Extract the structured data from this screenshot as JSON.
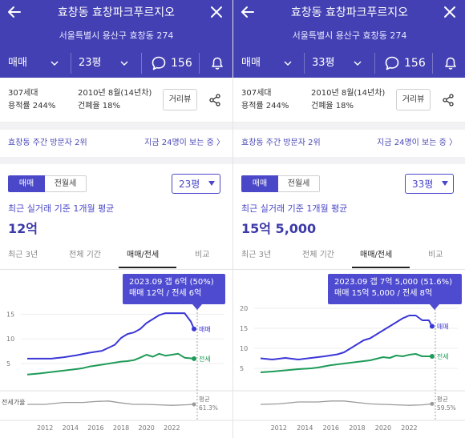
{
  "panels": [
    {
      "header": {
        "title": "효창동 효창파크푸르지오",
        "address": "서울특별시 용산구 효창동 274",
        "trade_type": "매매",
        "area": "23평",
        "comment_count": "156"
      },
      "info": {
        "units": "307세대",
        "floor_area_ratio": "용적률 244%",
        "built_year": "2010년 8월(14년차)",
        "building_coverage": "건폐율 18%",
        "distance_button": "거리뷰"
      },
      "visitors": {
        "text": "효창동 주간 방문자 2위",
        "link": "지금 24명이 보는 중 〉"
      },
      "price": {
        "tab_sale": "매매",
        "tab_rent": "전월세",
        "area_select": "23평",
        "avg_label": "최근 실거래 기준 1개월 평균",
        "avg_value": "12억"
      },
      "period_tabs": [
        "최근 3년",
        "전체 기간",
        "매매/전세",
        "비교"
      ],
      "tooltip": {
        "line1": "2023.09  갭 6억 (50%)",
        "line2": "매매 12억 / 전세 6억"
      },
      "chart_data": {
        "type": "line",
        "x_ticks": [
          "2012",
          "2014",
          "2016",
          "2018",
          "2020",
          "2022"
        ],
        "xlim": [
          2010.6,
          2024.0
        ],
        "y_ticks": [
          "15억",
          "10억",
          "5억"
        ],
        "ylim": [
          0,
          17
        ],
        "series": [
          {
            "name": "매매",
            "color": "#3b37d6",
            "points": [
              [
                2010.6,
                6
              ],
              [
                2011.5,
                6
              ],
              [
                2012.5,
                6
              ],
              [
                2013.5,
                6.3
              ],
              [
                2014.5,
                6.7
              ],
              [
                2015.5,
                7.2
              ],
              [
                2016.5,
                7.6
              ],
              [
                2017.0,
                8.2
              ],
              [
                2017.5,
                8.8
              ],
              [
                2018.0,
                10.2
              ],
              [
                2018.5,
                11
              ],
              [
                2019.0,
                11.3
              ],
              [
                2019.5,
                12
              ],
              [
                2020.0,
                13.2
              ],
              [
                2020.5,
                14
              ],
              [
                2021.0,
                14.8
              ],
              [
                2021.5,
                15.2
              ],
              [
                2022.0,
                15.2
              ],
              [
                2022.5,
                15.2
              ],
              [
                2023.0,
                15.2
              ],
              [
                2023.5,
                13.5
              ],
              [
                2023.75,
                12
              ]
            ]
          },
          {
            "name": "전세",
            "color": "#1e9b58",
            "points": [
              [
                2010.6,
                2.8
              ],
              [
                2011.5,
                3.0
              ],
              [
                2012.5,
                3.3
              ],
              [
                2013.5,
                3.6
              ],
              [
                2014.5,
                3.9
              ],
              [
                2015.0,
                4.1
              ],
              [
                2015.5,
                4.4
              ],
              [
                2016.0,
                4.6
              ],
              [
                2016.5,
                4.8
              ],
              [
                2017.0,
                5.0
              ],
              [
                2017.5,
                5.2
              ],
              [
                2018.0,
                5.4
              ],
              [
                2018.5,
                5.5
              ],
              [
                2019.0,
                5.7
              ],
              [
                2019.5,
                6.2
              ],
              [
                2020.0,
                6.8
              ],
              [
                2020.5,
                6.4
              ],
              [
                2021.0,
                7.0
              ],
              [
                2021.5,
                6.6
              ],
              [
                2022.0,
                6.8
              ],
              [
                2022.5,
                7.0
              ],
              [
                2023.0,
                6.2
              ],
              [
                2023.75,
                6
              ]
            ]
          }
        ],
        "sub_label": "전세가율",
        "sub_series": {
          "name": "평균",
          "color": "#9a9a9a",
          "points": [
            [
              2010.6,
              0.5
            ],
            [
              2012,
              0.5
            ],
            [
              2013.5,
              0.58
            ],
            [
              2015,
              0.58
            ],
            [
              2016,
              0.62
            ],
            [
              2017,
              0.64
            ],
            [
              2018,
              0.56
            ],
            [
              2019,
              0.5
            ],
            [
              2020,
              0.5
            ],
            [
              2021,
              0.48
            ],
            [
              2022,
              0.46
            ],
            [
              2023,
              0.48
            ],
            [
              2023.75,
              0.5
            ]
          ]
        },
        "avg_label": "평균",
        "avg_value": "61.3%",
        "series_labels": [
          "매매",
          "전세"
        ]
      }
    },
    {
      "header": {
        "title": "효창동 효창파크푸르지오",
        "address": "서울특별시 용산구 효창동 274",
        "trade_type": "매매",
        "area": "33평",
        "comment_count": "156"
      },
      "info": {
        "units": "307세대",
        "floor_area_ratio": "용적률 244%",
        "built_year": "2010년 8월(14년차)",
        "building_coverage": "건폐율 18%",
        "distance_button": "거리뷰"
      },
      "visitors": {
        "text": "효창동 주간 방문자 2위",
        "link": "지금 24명이 보는 중 〉"
      },
      "price": {
        "tab_sale": "매매",
        "tab_rent": "전월세",
        "area_select": "33평",
        "avg_label": "최근 실거래 기준 1개월 평균",
        "avg_value": "15억 5,000"
      },
      "period_tabs": [
        "최근 3년",
        "전체 기간",
        "매매/전세",
        "비교"
      ],
      "tooltip": {
        "line1": "2023.09  갭 7억 5,000 (51.6%)",
        "line2": "매매 15억 5,000 / 전세 8억"
      },
      "chart_data": {
        "type": "line",
        "x_ticks": [
          "2012",
          "2014",
          "2016",
          "2018",
          "2020",
          "2022"
        ],
        "xlim": [
          2010.6,
          2024.0
        ],
        "y_ticks": [
          "20억",
          "15억",
          "10억",
          "5억"
        ],
        "ylim": [
          0,
          21
        ],
        "series": [
          {
            "name": "매매",
            "color": "#3b37d6",
            "points": [
              [
                2010.6,
                7.5
              ],
              [
                2011.5,
                7.2
              ],
              [
                2012.5,
                7.6
              ],
              [
                2013.5,
                7.2
              ],
              [
                2014.5,
                7.6
              ],
              [
                2015.5,
                8.0
              ],
              [
                2016.5,
                8.5
              ],
              [
                2017.0,
                9.0
              ],
              [
                2017.5,
                10.0
              ],
              [
                2018.0,
                11.0
              ],
              [
                2018.5,
                12.0
              ],
              [
                2019.0,
                12.5
              ],
              [
                2019.5,
                13.5
              ],
              [
                2020.0,
                14.5
              ],
              [
                2020.5,
                15.5
              ],
              [
                2021.0,
                16.5
              ],
              [
                2021.5,
                17.5
              ],
              [
                2022.0,
                18.2
              ],
              [
                2022.5,
                18.2
              ],
              [
                2023.0,
                17.0
              ],
              [
                2023.5,
                17.0
              ],
              [
                2023.75,
                15.5
              ]
            ]
          },
          {
            "name": "전세",
            "color": "#1e9b58",
            "points": [
              [
                2010.6,
                4.0
              ],
              [
                2011.5,
                4.2
              ],
              [
                2012.5,
                4.5
              ],
              [
                2013.5,
                4.8
              ],
              [
                2014.5,
                5.0
              ],
              [
                2015.0,
                5.2
              ],
              [
                2015.5,
                5.5
              ],
              [
                2016.0,
                5.8
              ],
              [
                2016.5,
                6.0
              ],
              [
                2017.0,
                6.2
              ],
              [
                2017.5,
                6.4
              ],
              [
                2018.0,
                6.6
              ],
              [
                2018.5,
                6.8
              ],
              [
                2019.0,
                7.0
              ],
              [
                2019.5,
                7.4
              ],
              [
                2020.0,
                7.8
              ],
              [
                2020.5,
                7.6
              ],
              [
                2021.0,
                8.2
              ],
              [
                2021.5,
                8.0
              ],
              [
                2022.0,
                8.4
              ],
              [
                2022.5,
                8.6
              ],
              [
                2023.0,
                8.0
              ],
              [
                2023.75,
                8.0
              ]
            ]
          }
        ],
        "sub_label": "",
        "sub_series": {
          "name": "평균",
          "color": "#9a9a9a",
          "points": [
            [
              2010.6,
              0.5
            ],
            [
              2012,
              0.52
            ],
            [
              2013.5,
              0.6
            ],
            [
              2015,
              0.6
            ],
            [
              2016,
              0.64
            ],
            [
              2017,
              0.64
            ],
            [
              2018,
              0.58
            ],
            [
              2019,
              0.52
            ],
            [
              2020,
              0.5
            ],
            [
              2021,
              0.48
            ],
            [
              2022,
              0.46
            ],
            [
              2023,
              0.48
            ],
            [
              2023.75,
              0.52
            ]
          ]
        },
        "avg_label": "평균",
        "avg_value": "59.5%",
        "series_labels": [
          "매매",
          "전세"
        ]
      }
    }
  ]
}
